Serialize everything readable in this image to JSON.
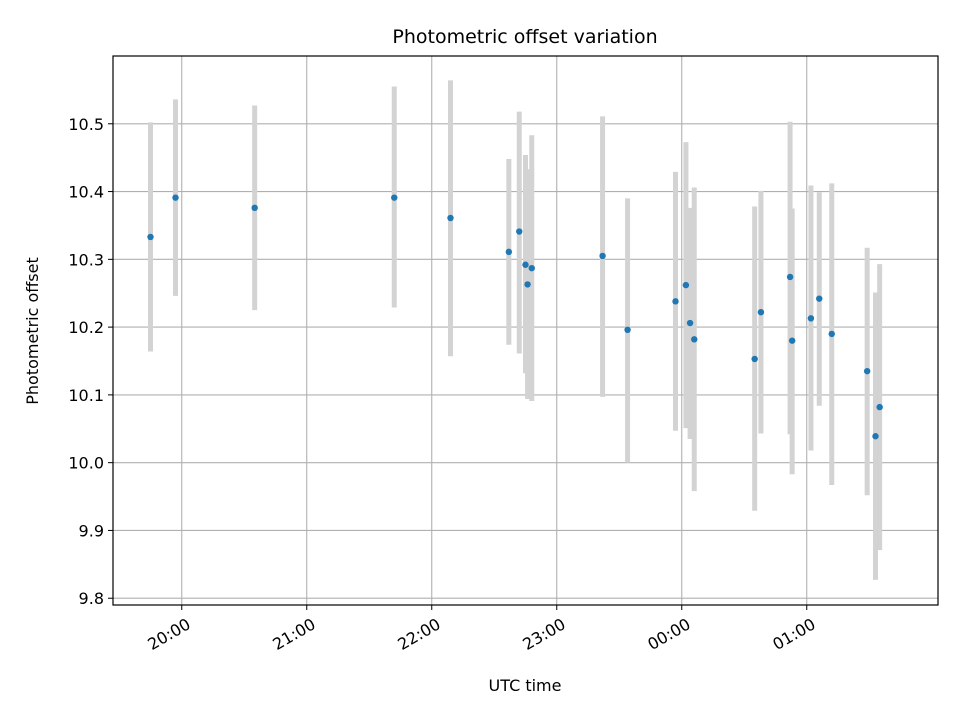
{
  "chart_data": {
    "type": "scatter",
    "title": "Photometric offset variation",
    "xlabel": "UTC time",
    "ylabel": "Photometric offset",
    "x_kind": "time",
    "xlim": [
      "19:27",
      "02:03"
    ],
    "ylim": [
      9.79,
      10.6
    ],
    "x_ticks": [
      "20:00",
      "21:00",
      "22:00",
      "23:00",
      "00:00",
      "01:00"
    ],
    "y_ticks": [
      9.8,
      9.9,
      10.0,
      10.1,
      10.2,
      10.3,
      10.4,
      10.5
    ],
    "grid": true,
    "colors": {
      "point": "#1f77b4",
      "errorbar": "#d3d3d3",
      "grid": "#b0b0b0"
    },
    "points": [
      {
        "x": "19:45",
        "y": 10.333,
        "ylow": 10.164,
        "yhigh": 10.502
      },
      {
        "x": "19:57",
        "y": 10.391,
        "ylow": 10.246,
        "yhigh": 10.536
      },
      {
        "x": "20:35",
        "y": 10.376,
        "ylow": 10.225,
        "yhigh": 10.527
      },
      {
        "x": "21:42",
        "y": 10.391,
        "ylow": 10.229,
        "yhigh": 10.555
      },
      {
        "x": "22:09",
        "y": 10.361,
        "ylow": 10.157,
        "yhigh": 10.564
      },
      {
        "x": "22:37",
        "y": 10.311,
        "ylow": 10.174,
        "yhigh": 10.448
      },
      {
        "x": "22:42",
        "y": 10.341,
        "ylow": 10.161,
        "yhigh": 10.518
      },
      {
        "x": "22:45",
        "y": 10.292,
        "ylow": 10.132,
        "yhigh": 10.454
      },
      {
        "x": "22:46",
        "y": 10.263,
        "ylow": 10.094,
        "yhigh": 10.433
      },
      {
        "x": "22:48",
        "y": 10.287,
        "ylow": 10.091,
        "yhigh": 10.483
      },
      {
        "x": "23:22",
        "y": 10.305,
        "ylow": 10.097,
        "yhigh": 10.511
      },
      {
        "x": "23:34",
        "y": 10.196,
        "ylow": 10.0,
        "yhigh": 10.39
      },
      {
        "x": "23:57",
        "y": 10.238,
        "ylow": 10.047,
        "yhigh": 10.429
      },
      {
        "x": "00:02",
        "y": 10.262,
        "ylow": 10.051,
        "yhigh": 10.473
      },
      {
        "x": "00:04",
        "y": 10.206,
        "ylow": 10.035,
        "yhigh": 10.376
      },
      {
        "x": "00:06",
        "y": 10.182,
        "ylow": 9.958,
        "yhigh": 10.406
      },
      {
        "x": "00:35",
        "y": 10.153,
        "ylow": 9.929,
        "yhigh": 10.378
      },
      {
        "x": "00:38",
        "y": 10.222,
        "ylow": 10.043,
        "yhigh": 10.401
      },
      {
        "x": "00:52",
        "y": 10.274,
        "ylow": 10.042,
        "yhigh": 10.503
      },
      {
        "x": "00:53",
        "y": 10.18,
        "ylow": 9.983,
        "yhigh": 10.375
      },
      {
        "x": "01:02",
        "y": 10.213,
        "ylow": 10.018,
        "yhigh": 10.409
      },
      {
        "x": "01:06",
        "y": 10.242,
        "ylow": 10.084,
        "yhigh": 10.399
      },
      {
        "x": "01:12",
        "y": 10.19,
        "ylow": 9.967,
        "yhigh": 10.412
      },
      {
        "x": "01:29",
        "y": 10.135,
        "ylow": 9.952,
        "yhigh": 10.317
      },
      {
        "x": "01:33",
        "y": 10.039,
        "ylow": 9.827,
        "yhigh": 10.251
      },
      {
        "x": "01:35",
        "y": 10.082,
        "ylow": 9.871,
        "yhigh": 10.293
      }
    ]
  }
}
